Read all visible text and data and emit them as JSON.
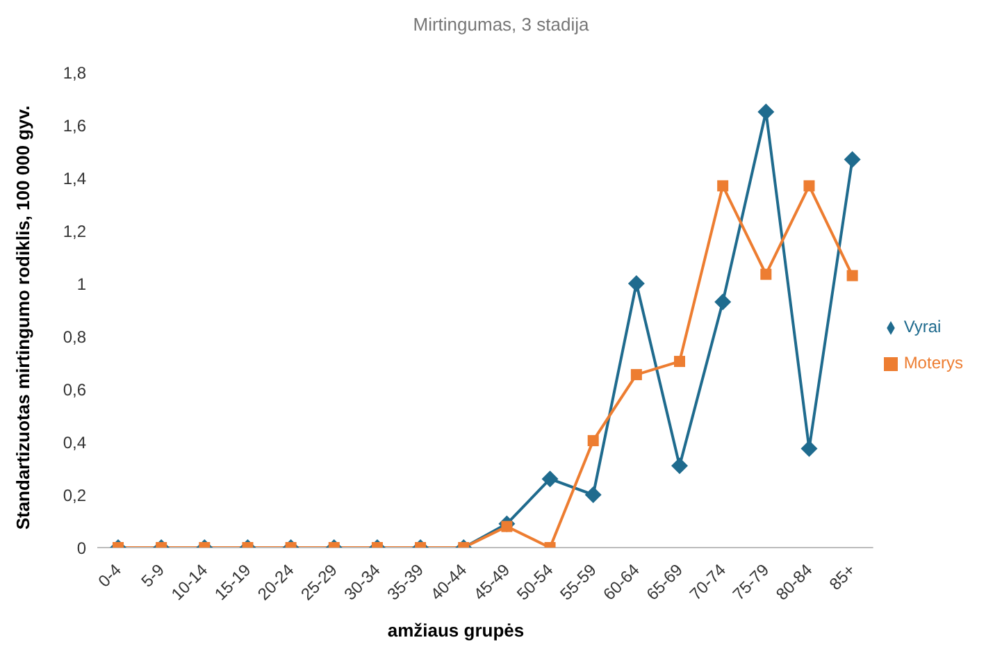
{
  "chart_data": {
    "type": "line",
    "title": "Mirtingumas, 3 stadija",
    "xlabel": "amžiaus grupės",
    "ylabel": "Standartizuotas mirtingumo rodiklis, 100 000 gyv.",
    "categories": [
      "0-4",
      "5-9",
      "10-14",
      "15-19",
      "20-24",
      "25-29",
      "30-34",
      "35-39",
      "40-44",
      "45-49",
      "50-54",
      "55-59",
      "60-64",
      "65-69",
      "70-74",
      "75-79",
      "80-84",
      "85+"
    ],
    "series": [
      {
        "name": "Vyrai",
        "color": "#1f6b8e",
        "marker": "diamond",
        "values": [
          0,
          0,
          0,
          0,
          0,
          0,
          0,
          0,
          0,
          0.09,
          0.26,
          0.2,
          1.0,
          0.31,
          0.93,
          1.65,
          0.375,
          1.47
        ]
      },
      {
        "name": "Moterys",
        "color": "#ed7d31",
        "marker": "square",
        "values": [
          0,
          0,
          0,
          0,
          0,
          0,
          0,
          0,
          0,
          0.08,
          0,
          0.405,
          0.655,
          0.705,
          1.37,
          1.035,
          1.37,
          1.03
        ]
      }
    ],
    "ylim": [
      0,
      1.8
    ],
    "yticks": [
      0,
      {
        "value": 0.2,
        "label": "0,2"
      },
      {
        "value": 0.4,
        "label": "0,4"
      },
      {
        "value": 0.6,
        "label": "0,6"
      },
      {
        "value": 0.8,
        "label": "0,8"
      },
      1,
      {
        "value": 1.2,
        "label": "1,2"
      },
      {
        "value": 1.4,
        "label": "1,4"
      },
      {
        "value": 1.6,
        "label": "1,6"
      },
      {
        "value": 1.8,
        "label": "1,8"
      }
    ],
    "grid": false,
    "legend": "right",
    "line_style": "solid"
  }
}
